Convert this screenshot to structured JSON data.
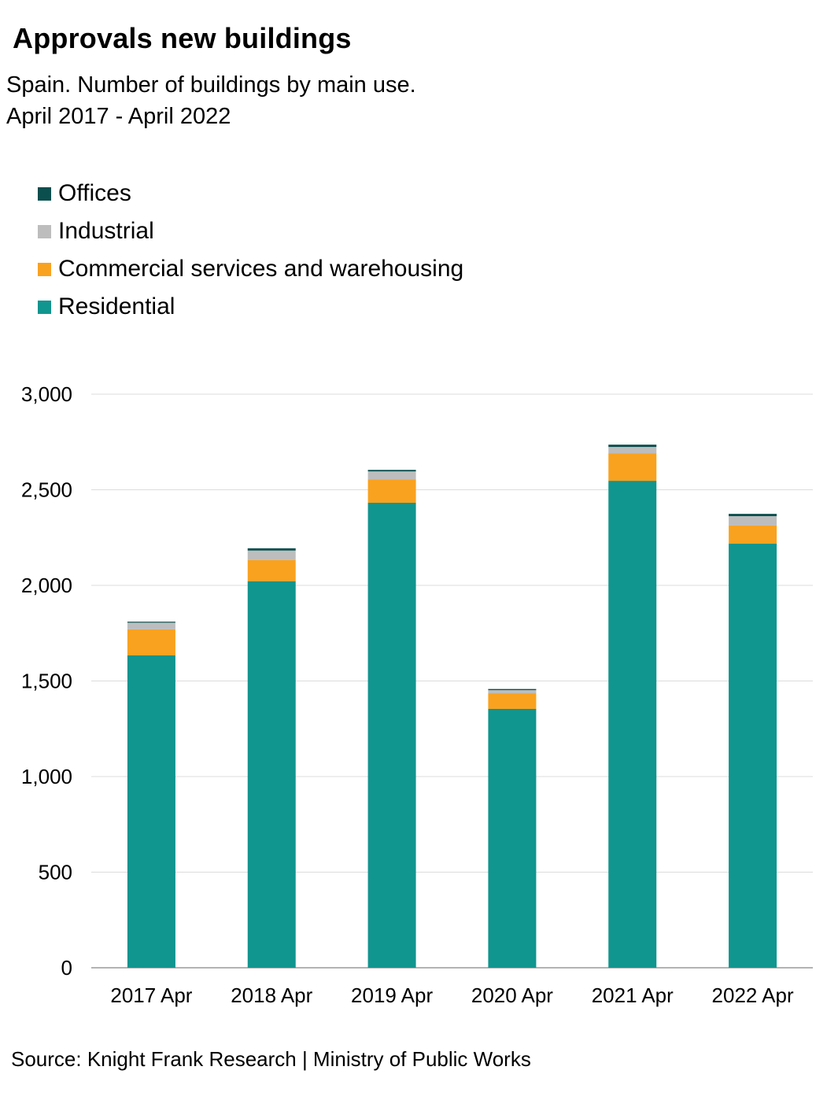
{
  "chart_data": {
    "type": "bar",
    "stacked": true,
    "title": "Approvals new buildings",
    "subtitle_lines": [
      "Spain. Number of buildings by main use.",
      "April 2017 - April 2022"
    ],
    "xlabel": "",
    "ylabel": "",
    "ylim": [
      0,
      3000
    ],
    "yticks": [
      0,
      500,
      1000,
      1500,
      2000,
      2500,
      3000
    ],
    "ytick_labels": [
      "0",
      "500",
      "1,000",
      "1,500",
      "2,000",
      "2,500",
      "3,000"
    ],
    "grid": true,
    "legend_position": "top-left",
    "categories": [
      "2017 Apr",
      "2018 Apr",
      "2019 Apr",
      "2020 Apr",
      "2021 Apr",
      "2022 Apr"
    ],
    "series": [
      {
        "name": "Residential",
        "color": "#11958f",
        "values": [
          1634,
          2022,
          2432,
          1354,
          2547,
          2218
        ]
      },
      {
        "name": "Commercial services and warehousing",
        "color": "#f9a21f",
        "values": [
          136,
          111,
          123,
          82,
          144,
          95
        ]
      },
      {
        "name": "Industrial",
        "color": "#bdbdbd",
        "values": [
          35,
          49,
          41,
          16,
          33,
          49
        ]
      },
      {
        "name": "Offices",
        "color": "#0c4f4f",
        "values": [
          5,
          12,
          8,
          6,
          12,
          12
        ]
      }
    ],
    "legend_order": [
      "Offices",
      "Industrial",
      "Commercial services and warehousing",
      "Residential"
    ],
    "source": "Source: Knight Frank Research | Ministry of Public Works"
  }
}
